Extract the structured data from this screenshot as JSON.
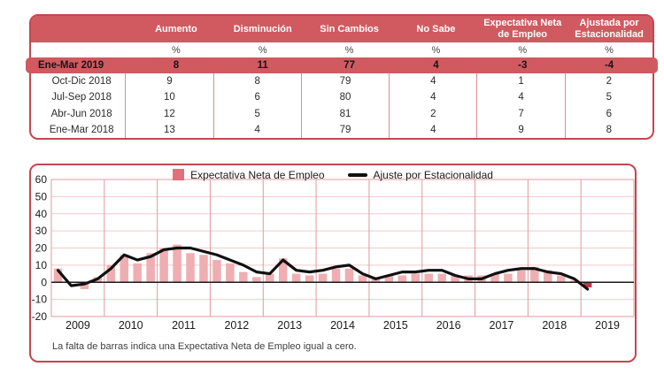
{
  "colors": {
    "border_red": "#c24750",
    "band_red": "#d05a60",
    "separator": "#d98d92",
    "bar": "#efaeb2",
    "bar_highlight": "#b03c48",
    "line": "#101010",
    "grid_minor": "#f2c9ca",
    "grid_year": "#e09a9e",
    "zero_line": "#1a1a1a",
    "header_text": "#ffffff",
    "legend_swatch": "#e0707a"
  },
  "table": {
    "columns": [
      "Aumento",
      "Disminución",
      "Sin Cambios",
      "No Sabe",
      "Expectativa Neta\nde Empleo",
      "Ajustada por\nEstacionalidad"
    ],
    "unit_row": [
      "%",
      "%",
      "%",
      "%",
      "%",
      "%"
    ],
    "highlight_row": {
      "label": "Ene-Mar 2019",
      "values": [
        "8",
        "11",
        "77",
        "4",
        "-3",
        "-4"
      ]
    },
    "rows": [
      {
        "label": "Oct-Dic 2018",
        "values": [
          "9",
          "8",
          "79",
          "4",
          "1",
          "2"
        ]
      },
      {
        "label": "Jul-Sep 2018",
        "values": [
          "10",
          "6",
          "80",
          "4",
          "4",
          "5"
        ]
      },
      {
        "label": "Abr-Jun 2018",
        "values": [
          "12",
          "5",
          "81",
          "2",
          "7",
          "6"
        ]
      },
      {
        "label": "Ene-Mar 2018",
        "values": [
          "13",
          "4",
          "79",
          "4",
          "9",
          "8"
        ]
      }
    ]
  },
  "chart": {
    "legend_bar_label": "Expectativa Neta de Empleo",
    "legend_line_label": "Ajuste por Estacionalidad",
    "note": "La falta de barras indica una Expectativa Neta de Empleo igual a cero."
  },
  "chart_data": {
    "type": "bar",
    "title": "",
    "xlabel": "",
    "ylabel": "",
    "ylim": [
      -20,
      60
    ],
    "yticks": [
      60,
      50,
      40,
      30,
      20,
      10,
      0,
      -10,
      -20
    ],
    "years": [
      "2009",
      "2010",
      "2011",
      "2012",
      "2013",
      "2014",
      "2015",
      "2016",
      "2017",
      "2018",
      "2019"
    ],
    "quarters_per_year": 4,
    "note_zero_bars": "Bars with value 0 are not drawn",
    "highlight_last_bar": true,
    "series": [
      {
        "name": "Expectativa Neta de Empleo",
        "type": "bar",
        "values": [
          8,
          0,
          -4,
          3,
          10,
          16,
          11,
          17,
          20,
          22,
          17,
          16,
          13,
          11,
          6,
          3,
          5,
          14,
          5,
          4,
          5,
          8,
          8,
          4,
          2,
          4,
          4,
          5,
          5,
          5,
          4,
          4,
          4,
          5,
          5,
          7,
          9,
          7,
          4,
          1,
          -3
        ]
      },
      {
        "name": "Ajuste por Estacionalidad",
        "type": "line",
        "values": [
          7,
          -2,
          -1,
          2,
          8,
          16,
          13,
          15,
          19,
          20,
          20,
          18,
          16,
          13,
          10,
          6,
          5,
          13,
          7,
          6,
          7,
          9,
          10,
          5,
          2,
          4,
          6,
          6,
          7,
          7,
          4,
          2,
          2,
          5,
          7,
          8,
          8,
          6,
          5,
          2,
          -4
        ]
      }
    ],
    "legend_position": "top"
  }
}
